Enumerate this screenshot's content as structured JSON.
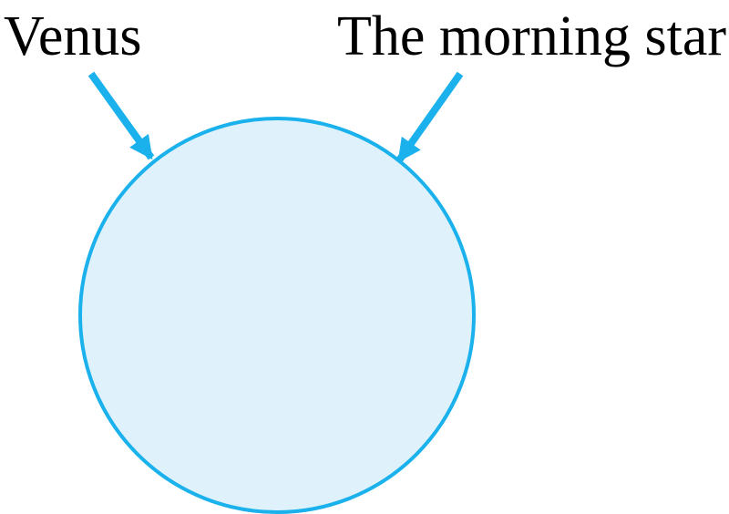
{
  "labels": {
    "left": "Venus",
    "right": "The morning star"
  },
  "colors": {
    "stroke": "#1ab1ec",
    "fill": "#dff2fb",
    "text": "#000000"
  }
}
